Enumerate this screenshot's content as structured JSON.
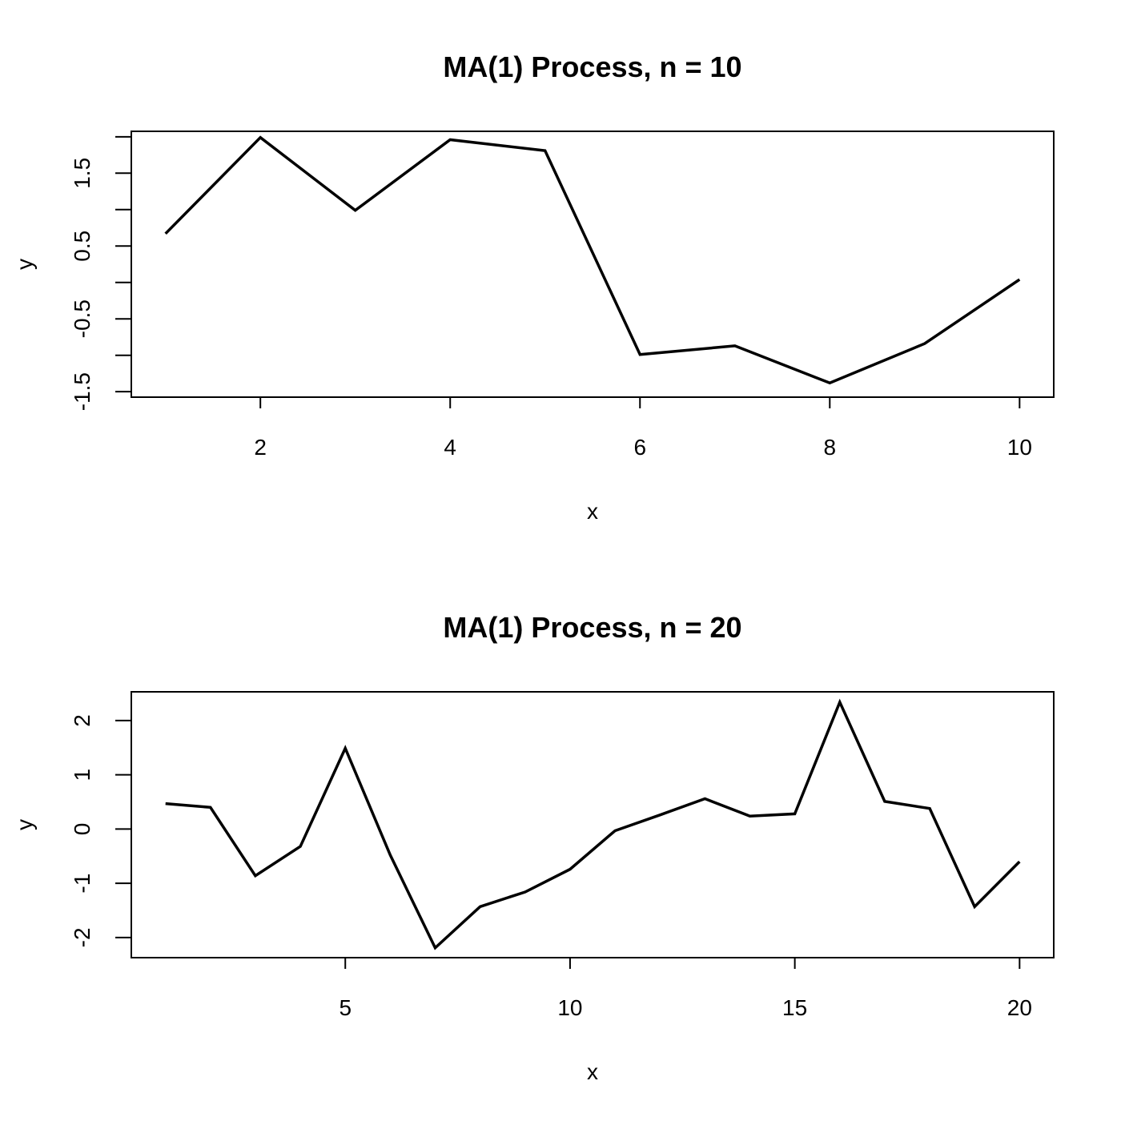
{
  "colors": {
    "background": "#ffffff",
    "line": "#000000"
  },
  "chart_data": [
    {
      "type": "line",
      "title": "MA(1) Process, n = 10",
      "xlabel": "x",
      "ylabel": "y",
      "xlim": [
        0.64,
        10.36
      ],
      "ylim": [
        -1.575,
        2.075
      ],
      "xticks": [
        2,
        4,
        6,
        8,
        10
      ],
      "xtick_labels": [
        "2",
        "4",
        "6",
        "8",
        "10"
      ],
      "yticks": [
        -1.5,
        -1,
        -0.5,
        0,
        0.5,
        1,
        1.5,
        2
      ],
      "ytick_labels": [
        "-1.5",
        "",
        "-0.5",
        "",
        "0.5",
        "",
        "1.5",
        ""
      ],
      "grid": false,
      "series": [
        {
          "x": [
            1,
            2,
            3,
            4,
            5,
            6,
            7,
            8,
            9,
            10
          ],
          "values": [
            0.67,
            1.99,
            0.99,
            1.96,
            1.81,
            -0.99,
            -0.87,
            -1.38,
            -0.84,
            0.04
          ]
        }
      ]
    },
    {
      "type": "line",
      "title": "MA(1) Process, n = 20",
      "xlabel": "x",
      "ylabel": "y",
      "xlim": [
        0.24,
        20.76
      ],
      "ylim": [
        -2.37,
        2.53
      ],
      "xticks": [
        5,
        10,
        15,
        20
      ],
      "xtick_labels": [
        "5",
        "10",
        "15",
        "20"
      ],
      "yticks": [
        -2,
        -1,
        0,
        1,
        2
      ],
      "ytick_labels": [
        "-2",
        "-1",
        "0",
        "1",
        "2"
      ],
      "grid": false,
      "series": [
        {
          "x": [
            1,
            2,
            3,
            4,
            5,
            6,
            7,
            8,
            9,
            10,
            11,
            12,
            13,
            14,
            15,
            16,
            17,
            18,
            19,
            20
          ],
          "values": [
            0.47,
            0.4,
            -0.86,
            -0.32,
            1.49,
            -0.48,
            -2.19,
            -1.43,
            -1.16,
            -0.74,
            -0.03,
            0.26,
            0.56,
            0.24,
            0.28,
            2.34,
            0.51,
            0.38,
            -1.43,
            -0.6
          ]
        }
      ]
    }
  ]
}
